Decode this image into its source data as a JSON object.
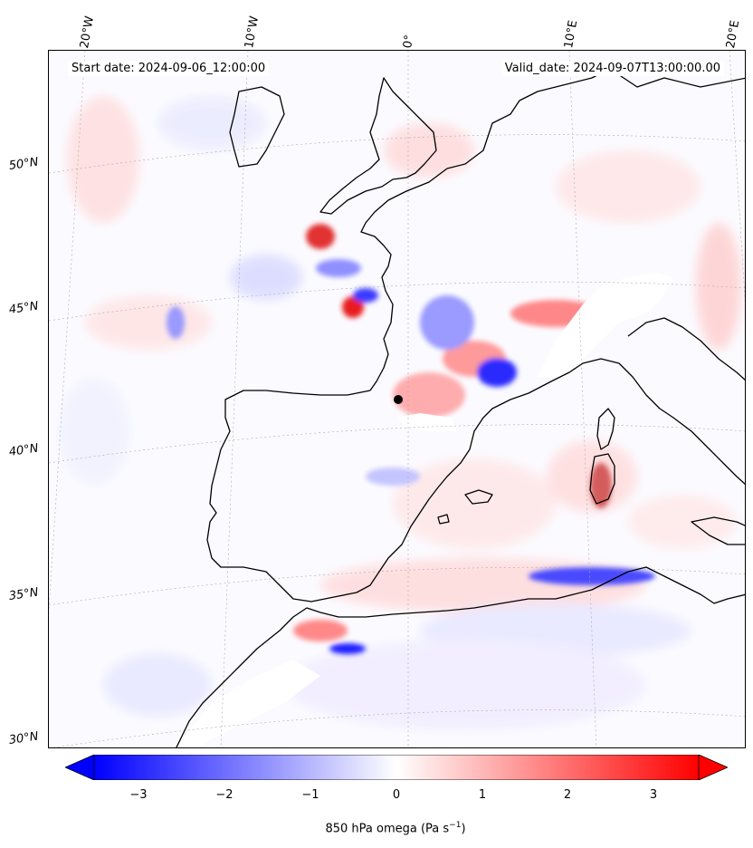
{
  "figure": {
    "start_date_text": "Start date: 2024-09-06_12:00:00",
    "valid_date_text": "Valid_date: 2024-09-07T13:00:00.00"
  },
  "map": {
    "projection": "Lambert conformal",
    "region": "Western Europe / Western Mediterranean",
    "field": "850 hPa omega",
    "lat_labels": [
      "50°N",
      "45°N",
      "40°N",
      "35°N",
      "30°N"
    ],
    "lon_labels": [
      "20°W",
      "10°W",
      "0°",
      "10°E",
      "20°E"
    ],
    "gridlines": true,
    "coastline_color": "#000000",
    "missing_data_color": "#ffffff"
  },
  "colorbar": {
    "cmap": "bwr",
    "min": -3.5,
    "max": 3.5,
    "extend": "both",
    "low_color": "#0000ff",
    "mid_color": "#ffffff",
    "high_color": "#ff0000",
    "ticks": [
      "−3",
      "−2",
      "−1",
      "0",
      "1",
      "2",
      "3"
    ],
    "label": "850 hPa omega (Pa s",
    "label_sup": "−1",
    "label_end": ")"
  }
}
